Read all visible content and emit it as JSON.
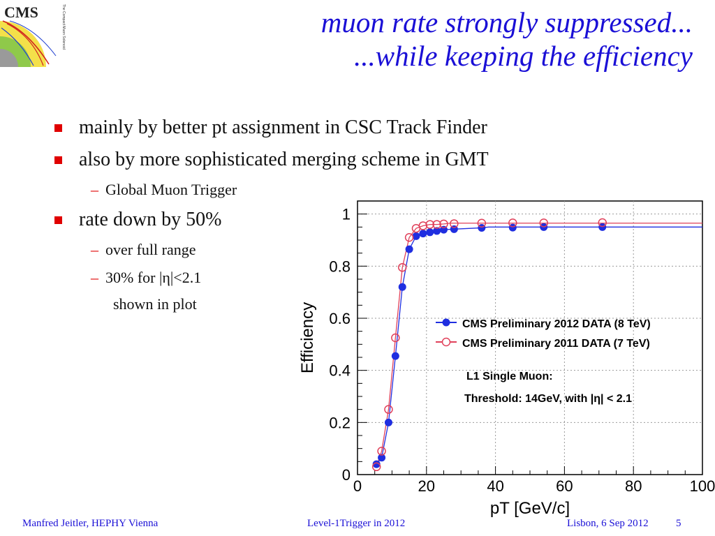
{
  "logo": {
    "text": "CMS",
    "subtitle": "The Compact Muon Solenoid"
  },
  "title": {
    "line1": "muon rate strongly suppressed...",
    "line2": "...while keeping the efficiency"
  },
  "bullets": {
    "b1": "mainly by better pt assignment in CSC Track Finder",
    "b2": "also by more sophisticated merging scheme in GMT",
    "b2_sub": "Global Muon Trigger",
    "b3": "rate down by 50%",
    "b3_sub1": "over full range",
    "b3_sub2": "30% for |η|<2.1",
    "b3_sub3": "shown in plot"
  },
  "footer": {
    "left": "Manfred Jeitler, HEPHY Vienna",
    "center": "Level-1Trigger in 2012",
    "right": "Lisbon, 6 Sep 2012",
    "page": "5"
  },
  "colors": {
    "title": "#1a0fd6",
    "bullet": "#e00000",
    "series2012": "#1f2ee0",
    "series2011": "#e0405a"
  },
  "chart_data": {
    "type": "scatter",
    "xlabel": "pT [GeV/c]",
    "ylabel": "Efficiency",
    "xlim": [
      0,
      100
    ],
    "ylim": [
      0,
      1.05
    ],
    "xticks": [
      "0",
      "20",
      "40",
      "60",
      "80",
      "100"
    ],
    "yticks": [
      "0",
      "0.2",
      "0.4",
      "0.6",
      "0.8",
      "1"
    ],
    "grid": true,
    "legend_position": "center-right",
    "series": [
      {
        "name": "CMS Preliminary 2012 DATA (8 TeV)",
        "marker": "filled-circle",
        "color": "#1f2ee0",
        "plateau": 0.95,
        "points": [
          [
            5.5,
            0.04
          ],
          [
            7,
            0.065
          ],
          [
            9,
            0.2
          ],
          [
            11,
            0.455
          ],
          [
            13,
            0.72
          ],
          [
            15,
            0.865
          ],
          [
            17,
            0.915
          ],
          [
            19,
            0.925
          ],
          [
            21,
            0.93
          ],
          [
            23,
            0.935
          ],
          [
            25,
            0.94
          ],
          [
            28,
            0.942
          ],
          [
            36,
            0.947
          ],
          [
            45,
            0.948
          ],
          [
            54,
            0.95
          ],
          [
            71,
            0.95
          ]
        ]
      },
      {
        "name": "CMS Preliminary 2011 DATA (7 TeV)",
        "marker": "open-circle",
        "color": "#e0405a",
        "plateau": 0.965,
        "points": [
          [
            5.5,
            0.03
          ],
          [
            7,
            0.09
          ],
          [
            9,
            0.25
          ],
          [
            11,
            0.525
          ],
          [
            13,
            0.795
          ],
          [
            15,
            0.91
          ],
          [
            17,
            0.945
          ],
          [
            19,
            0.955
          ],
          [
            21,
            0.96
          ],
          [
            23,
            0.96
          ],
          [
            25,
            0.962
          ],
          [
            28,
            0.963
          ],
          [
            36,
            0.965
          ],
          [
            45,
            0.966
          ],
          [
            54,
            0.966
          ],
          [
            71,
            0.967
          ]
        ]
      }
    ],
    "annotations": {
      "line1": "L1 Single Muon:",
      "line2": "Threshold: 14GeV, with |η| < 2.1"
    }
  }
}
